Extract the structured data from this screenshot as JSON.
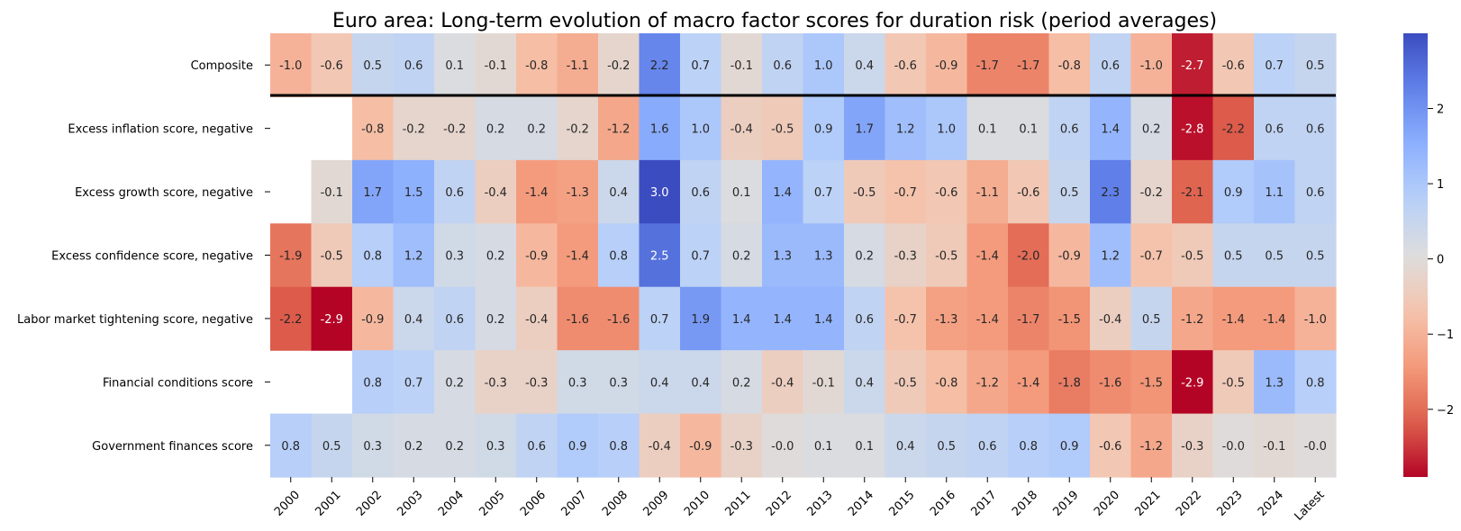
{
  "chart_data": {
    "type": "heatmap",
    "title": "Euro area: Long-term evolution of macro factor scores for duration risk (period averages)",
    "x_categories": [
      "2000",
      "2001",
      "2002",
      "2003",
      "2004",
      "2005",
      "2006",
      "2007",
      "2008",
      "2009",
      "2010",
      "2011",
      "2012",
      "2013",
      "2014",
      "2015",
      "2016",
      "2017",
      "2018",
      "2019",
      "2020",
      "2021",
      "2022",
      "2023",
      "2024",
      "Latest"
    ],
    "y_categories": [
      "Composite",
      "Excess inflation score, negative",
      "Excess growth score, negative",
      "Excess confidence score, negative",
      "Labor market tightening score, negative",
      "Financial conditions score",
      "Government finances score"
    ],
    "values": [
      [
        -1.0,
        -0.6,
        0.5,
        0.6,
        0.1,
        -0.1,
        -0.8,
        -1.1,
        -0.2,
        2.2,
        0.7,
        -0.1,
        0.6,
        1.0,
        0.4,
        -0.6,
        -0.9,
        -1.7,
        -1.7,
        -0.8,
        0.6,
        -1.0,
        -2.7,
        -0.6,
        0.7,
        0.5
      ],
      [
        null,
        null,
        -0.8,
        -0.2,
        -0.2,
        0.2,
        0.2,
        -0.2,
        -1.2,
        1.6,
        1.0,
        -0.4,
        -0.5,
        0.9,
        1.7,
        1.2,
        1.0,
        0.1,
        0.1,
        0.6,
        1.4,
        0.2,
        -2.8,
        -2.2,
        0.6,
        0.6
      ],
      [
        null,
        -0.1,
        1.7,
        1.5,
        0.6,
        -0.4,
        -1.4,
        -1.3,
        0.4,
        3.0,
        0.6,
        0.1,
        1.4,
        0.7,
        -0.5,
        -0.7,
        -0.6,
        -1.1,
        -0.6,
        0.5,
        2.3,
        -0.2,
        -2.1,
        0.9,
        1.1,
        0.6
      ],
      [
        -1.9,
        -0.5,
        0.8,
        1.2,
        0.3,
        0.2,
        -0.9,
        -1.4,
        0.8,
        2.5,
        0.7,
        0.2,
        1.3,
        1.3,
        0.2,
        -0.3,
        -0.5,
        -1.4,
        -2.0,
        -0.9,
        1.2,
        -0.7,
        -0.5,
        0.5,
        0.5,
        0.5
      ],
      [
        -2.2,
        -2.9,
        -0.9,
        0.4,
        0.6,
        0.2,
        -0.4,
        -1.6,
        -1.6,
        0.7,
        1.9,
        1.4,
        1.4,
        1.4,
        0.6,
        -0.7,
        -1.3,
        -1.4,
        -1.7,
        -1.5,
        -0.4,
        0.5,
        -1.2,
        -1.4,
        -1.4,
        -1.0
      ],
      [
        null,
        null,
        0.8,
        0.7,
        0.2,
        -0.3,
        -0.3,
        0.3,
        0.3,
        0.4,
        0.4,
        0.2,
        -0.4,
        -0.1,
        0.4,
        -0.5,
        -0.8,
        -1.2,
        -1.4,
        -1.8,
        -1.6,
        -1.5,
        -2.9,
        -0.5,
        1.3,
        0.8
      ],
      [
        0.8,
        0.5,
        0.3,
        0.2,
        0.2,
        0.3,
        0.6,
        0.9,
        0.8,
        -0.4,
        -0.9,
        -0.3,
        -0.0,
        0.1,
        0.1,
        0.4,
        0.5,
        0.6,
        0.8,
        0.9,
        -0.6,
        -1.2,
        -0.3,
        -0.0,
        -0.1,
        -0.0
      ]
    ],
    "value_range": [
      -2.9,
      3.0
    ],
    "colormap": "coolwarm_r",
    "colorbar_ticks": [
      2,
      1,
      0,
      -1,
      -2
    ],
    "colorbar_tick_labels": [
      "2",
      "1",
      "0",
      "−1",
      "−2"
    ],
    "separator_after_row": 0,
    "missing_color": "#ffffff"
  }
}
